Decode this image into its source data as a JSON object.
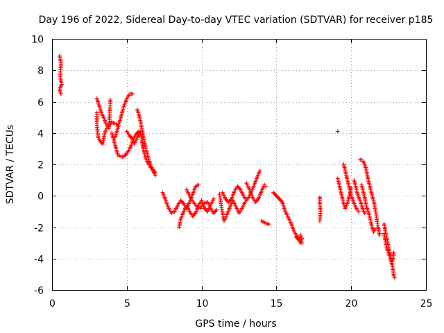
{
  "chart_data": {
    "type": "scatter",
    "title": "Day 196 of 2022, Sidereal Day-to-day VTEC variation (SDTVAR) for receiver p185",
    "xlabel": "GPS time / hours",
    "ylabel": "SDTVAR / TECUs",
    "xlim": [
      0,
      25
    ],
    "ylim": [
      -6,
      10
    ],
    "xticks": [
      0,
      5,
      10,
      15,
      20,
      25
    ],
    "yticks": [
      -6,
      -4,
      -2,
      0,
      2,
      4,
      6,
      8,
      10
    ],
    "grid": true,
    "marker": "plus",
    "color": "#ff0000",
    "series": [
      {
        "name": "SDTVAR",
        "segments": [
          [
            [
              0.5,
              8.9
            ],
            [
              0.55,
              8.7
            ],
            [
              0.6,
              8.5
            ],
            [
              0.55,
              7.6
            ],
            [
              0.6,
              7.3
            ],
            [
              0.65,
              7.1
            ],
            [
              0.5,
              6.8
            ],
            [
              0.55,
              6.6
            ],
            [
              0.6,
              6.5
            ]
          ],
          [
            [
              3.0,
              6.2
            ],
            [
              3.1,
              5.9
            ],
            [
              3.2,
              5.6
            ],
            [
              3.3,
              5.3
            ],
            [
              3.45,
              5.0
            ],
            [
              3.6,
              4.6
            ],
            [
              3.8,
              4.3
            ],
            [
              3.9,
              6.1
            ]
          ],
          [
            [
              3.0,
              5.3
            ],
            [
              3.0,
              4.6
            ],
            [
              3.05,
              4.0
            ],
            [
              3.1,
              3.7
            ],
            [
              3.2,
              3.5
            ],
            [
              3.4,
              3.3
            ],
            [
              3.5,
              3.9
            ],
            [
              3.6,
              4.2
            ],
            [
              3.8,
              4.5
            ],
            [
              4.0,
              4.7
            ],
            [
              4.2,
              4.6
            ],
            [
              4.4,
              4.5
            ]
          ],
          [
            [
              4.0,
              4.0
            ],
            [
              4.2,
              3.3
            ],
            [
              4.4,
              2.6
            ],
            [
              4.6,
              2.5
            ],
            [
              4.8,
              2.5
            ],
            [
              5.0,
              2.7
            ],
            [
              5.2,
              3.0
            ],
            [
              5.4,
              3.5
            ],
            [
              5.6,
              3.9
            ],
            [
              5.8,
              4.1
            ]
          ],
          [
            [
              4.2,
              3.7
            ],
            [
              4.4,
              4.3
            ],
            [
              4.6,
              5.0
            ],
            [
              4.8,
              5.7
            ],
            [
              5.0,
              6.2
            ],
            [
              5.2,
              6.5
            ],
            [
              5.4,
              6.5
            ]
          ],
          [
            [
              5.0,
              4.1
            ],
            [
              5.2,
              3.8
            ],
            [
              5.4,
              3.6
            ],
            [
              5.5,
              3.3
            ],
            [
              5.7,
              3.7
            ],
            [
              5.9,
              4.1
            ],
            [
              6.0,
              3.5
            ],
            [
              6.1,
              3.0
            ],
            [
              6.2,
              2.6
            ],
            [
              6.4,
              2.1
            ],
            [
              6.6,
              1.8
            ],
            [
              6.8,
              1.5
            ],
            [
              6.9,
              1.3
            ]
          ],
          [
            [
              5.7,
              5.5
            ],
            [
              5.8,
              5.2
            ],
            [
              5.9,
              4.8
            ],
            [
              6.0,
              4.3
            ],
            [
              6.1,
              3.8
            ],
            [
              6.3,
              2.9
            ],
            [
              6.5,
              2.2
            ],
            [
              6.7,
              1.7
            ],
            [
              6.9,
              1.5
            ]
          ],
          [
            [
              7.4,
              0.2
            ],
            [
              7.6,
              -0.3
            ],
            [
              7.8,
              -0.8
            ],
            [
              8.0,
              -1.1
            ],
            [
              8.2,
              -1.0
            ],
            [
              8.4,
              -0.6
            ],
            [
              8.6,
              -0.3
            ],
            [
              8.8,
              -0.5
            ],
            [
              9.0,
              -0.8
            ],
            [
              9.2,
              -0.4
            ],
            [
              9.4,
              0.1
            ],
            [
              9.6,
              0.6
            ],
            [
              9.8,
              0.7
            ]
          ],
          [
            [
              8.5,
              -2.0
            ],
            [
              8.6,
              -1.5
            ],
            [
              8.8,
              -1.0
            ],
            [
              9.0,
              -0.6
            ],
            [
              9.2,
              -1.0
            ],
            [
              9.4,
              -1.3
            ],
            [
              9.6,
              -1.1
            ],
            [
              9.8,
              -0.6
            ],
            [
              10.0,
              -0.3
            ],
            [
              10.2,
              -0.8
            ],
            [
              10.4,
              -1.0
            ],
            [
              10.6,
              -0.6
            ],
            [
              10.8,
              -0.2
            ]
          ],
          [
            [
              9.0,
              0.4
            ],
            [
              9.3,
              -0.2
            ],
            [
              9.6,
              -0.6
            ],
            [
              9.9,
              -0.8
            ],
            [
              10.1,
              -0.5
            ],
            [
              10.4,
              -0.4
            ],
            [
              10.6,
              -0.8
            ],
            [
              10.8,
              -1.1
            ],
            [
              11.0,
              -0.9
            ]
          ],
          [
            [
              11.2,
              0.1
            ],
            [
              11.3,
              -0.5
            ],
            [
              11.4,
              -1.1
            ],
            [
              11.5,
              -1.6
            ],
            [
              11.7,
              -1.2
            ],
            [
              11.9,
              -0.7
            ],
            [
              12.1,
              -0.3
            ],
            [
              12.3,
              -0.7
            ],
            [
              12.5,
              -1.1
            ],
            [
              12.7,
              -0.8
            ],
            [
              12.9,
              -0.4
            ]
          ],
          [
            [
              11.4,
              0.2
            ],
            [
              11.6,
              -0.2
            ],
            [
              11.8,
              -0.4
            ],
            [
              12.0,
              -0.2
            ],
            [
              12.2,
              0.3
            ],
            [
              12.4,
              0.6
            ],
            [
              12.6,
              0.4
            ],
            [
              12.8,
              0.0
            ],
            [
              13.0,
              -0.3
            ],
            [
              13.2,
              0.0
            ],
            [
              13.4,
              0.4
            ],
            [
              13.6,
              0.9
            ],
            [
              13.8,
              1.4
            ],
            [
              13.9,
              1.6
            ]
          ],
          [
            [
              13.0,
              0.8
            ],
            [
              13.2,
              0.4
            ],
            [
              13.4,
              -0.1
            ],
            [
              13.6,
              -0.4
            ],
            [
              13.8,
              -0.2
            ],
            [
              14.0,
              0.3
            ],
            [
              14.2,
              0.7
            ],
            [
              14.3,
              0.6
            ]
          ],
          [
            [
              14.0,
              -1.6
            ],
            [
              14.2,
              -1.7
            ],
            [
              14.4,
              -1.8
            ],
            [
              14.5,
              -1.8
            ]
          ],
          [
            [
              14.8,
              0.2
            ],
            [
              15.0,
              0.0
            ],
            [
              15.2,
              -0.2
            ],
            [
              15.4,
              -0.4
            ],
            [
              15.5,
              -0.7
            ],
            [
              15.6,
              -1.0
            ],
            [
              15.8,
              -1.4
            ],
            [
              16.0,
              -1.8
            ],
            [
              16.2,
              -2.3
            ],
            [
              16.4,
              -2.6
            ],
            [
              16.6,
              -2.8
            ],
            [
              16.7,
              -3.0
            ]
          ],
          [
            [
              16.3,
              -2.6
            ],
            [
              16.5,
              -2.8
            ],
            [
              16.6,
              -3.0
            ],
            [
              16.7,
              -2.7
            ],
            [
              16.6,
              -2.5
            ]
          ],
          [
            [
              17.9,
              -0.1
            ],
            [
              17.9,
              -0.5
            ],
            [
              17.95,
              -1.0
            ],
            [
              17.9,
              -1.6
            ]
          ],
          [
            [
              19.1,
              4.1
            ]
          ],
          [
            [
              19.1,
              1.1
            ],
            [
              19.2,
              0.7
            ],
            [
              19.3,
              0.3
            ],
            [
              19.4,
              -0.1
            ],
            [
              19.5,
              -0.5
            ],
            [
              19.6,
              -0.8
            ],
            [
              19.7,
              -0.6
            ],
            [
              19.8,
              -0.3
            ],
            [
              19.9,
              0.1
            ],
            [
              20.0,
              0.5
            ]
          ],
          [
            [
              19.5,
              2.0
            ],
            [
              19.6,
              1.6
            ],
            [
              19.7,
              1.2
            ],
            [
              19.8,
              0.8
            ],
            [
              19.9,
              0.4
            ],
            [
              20.0,
              0.0
            ],
            [
              20.2,
              -0.5
            ],
            [
              20.4,
              -0.9
            ],
            [
              20.5,
              -1.0
            ]
          ],
          [
            [
              20.2,
              1.0
            ],
            [
              20.3,
              0.6
            ],
            [
              20.4,
              0.2
            ],
            [
              20.5,
              -0.1
            ],
            [
              20.6,
              -0.3
            ],
            [
              20.7,
              -0.6
            ],
            [
              20.8,
              -0.9
            ],
            [
              20.9,
              -1.1
            ]
          ],
          [
            [
              20.6,
              2.3
            ],
            [
              20.7,
              2.3
            ],
            [
              20.8,
              2.2
            ],
            [
              20.9,
              2.0
            ],
            [
              21.0,
              1.7
            ],
            [
              21.1,
              1.2
            ],
            [
              21.2,
              0.8
            ],
            [
              21.3,
              0.4
            ],
            [
              21.4,
              0.0
            ],
            [
              21.5,
              -0.3
            ],
            [
              21.6,
              -0.8
            ],
            [
              21.7,
              -1.4
            ],
            [
              21.8,
              -2.0
            ],
            [
              21.9,
              -2.5
            ]
          ],
          [
            [
              20.7,
              0.7
            ],
            [
              20.8,
              0.3
            ],
            [
              20.9,
              -0.1
            ],
            [
              21.0,
              -0.6
            ],
            [
              21.1,
              -0.9
            ],
            [
              21.2,
              -1.2
            ],
            [
              21.3,
              -1.6
            ],
            [
              21.4,
              -2.0
            ],
            [
              21.5,
              -2.3
            ],
            [
              21.6,
              -2.1
            ]
          ],
          [
            [
              22.2,
              -1.8
            ],
            [
              22.3,
              -2.3
            ],
            [
              22.4,
              -2.8
            ],
            [
              22.5,
              -3.3
            ],
            [
              22.6,
              -3.7
            ],
            [
              22.7,
              -4.2
            ],
            [
              22.8,
              -4.7
            ],
            [
              22.85,
              -5.1
            ],
            [
              22.9,
              -5.2
            ]
          ],
          [
            [
              22.2,
              -2.4
            ],
            [
              22.3,
              -2.9
            ],
            [
              22.4,
              -3.4
            ],
            [
              22.6,
              -3.9
            ],
            [
              22.7,
              -4.3
            ],
            [
              22.8,
              -4.0
            ],
            [
              22.85,
              -3.6
            ]
          ]
        ]
      }
    ]
  }
}
